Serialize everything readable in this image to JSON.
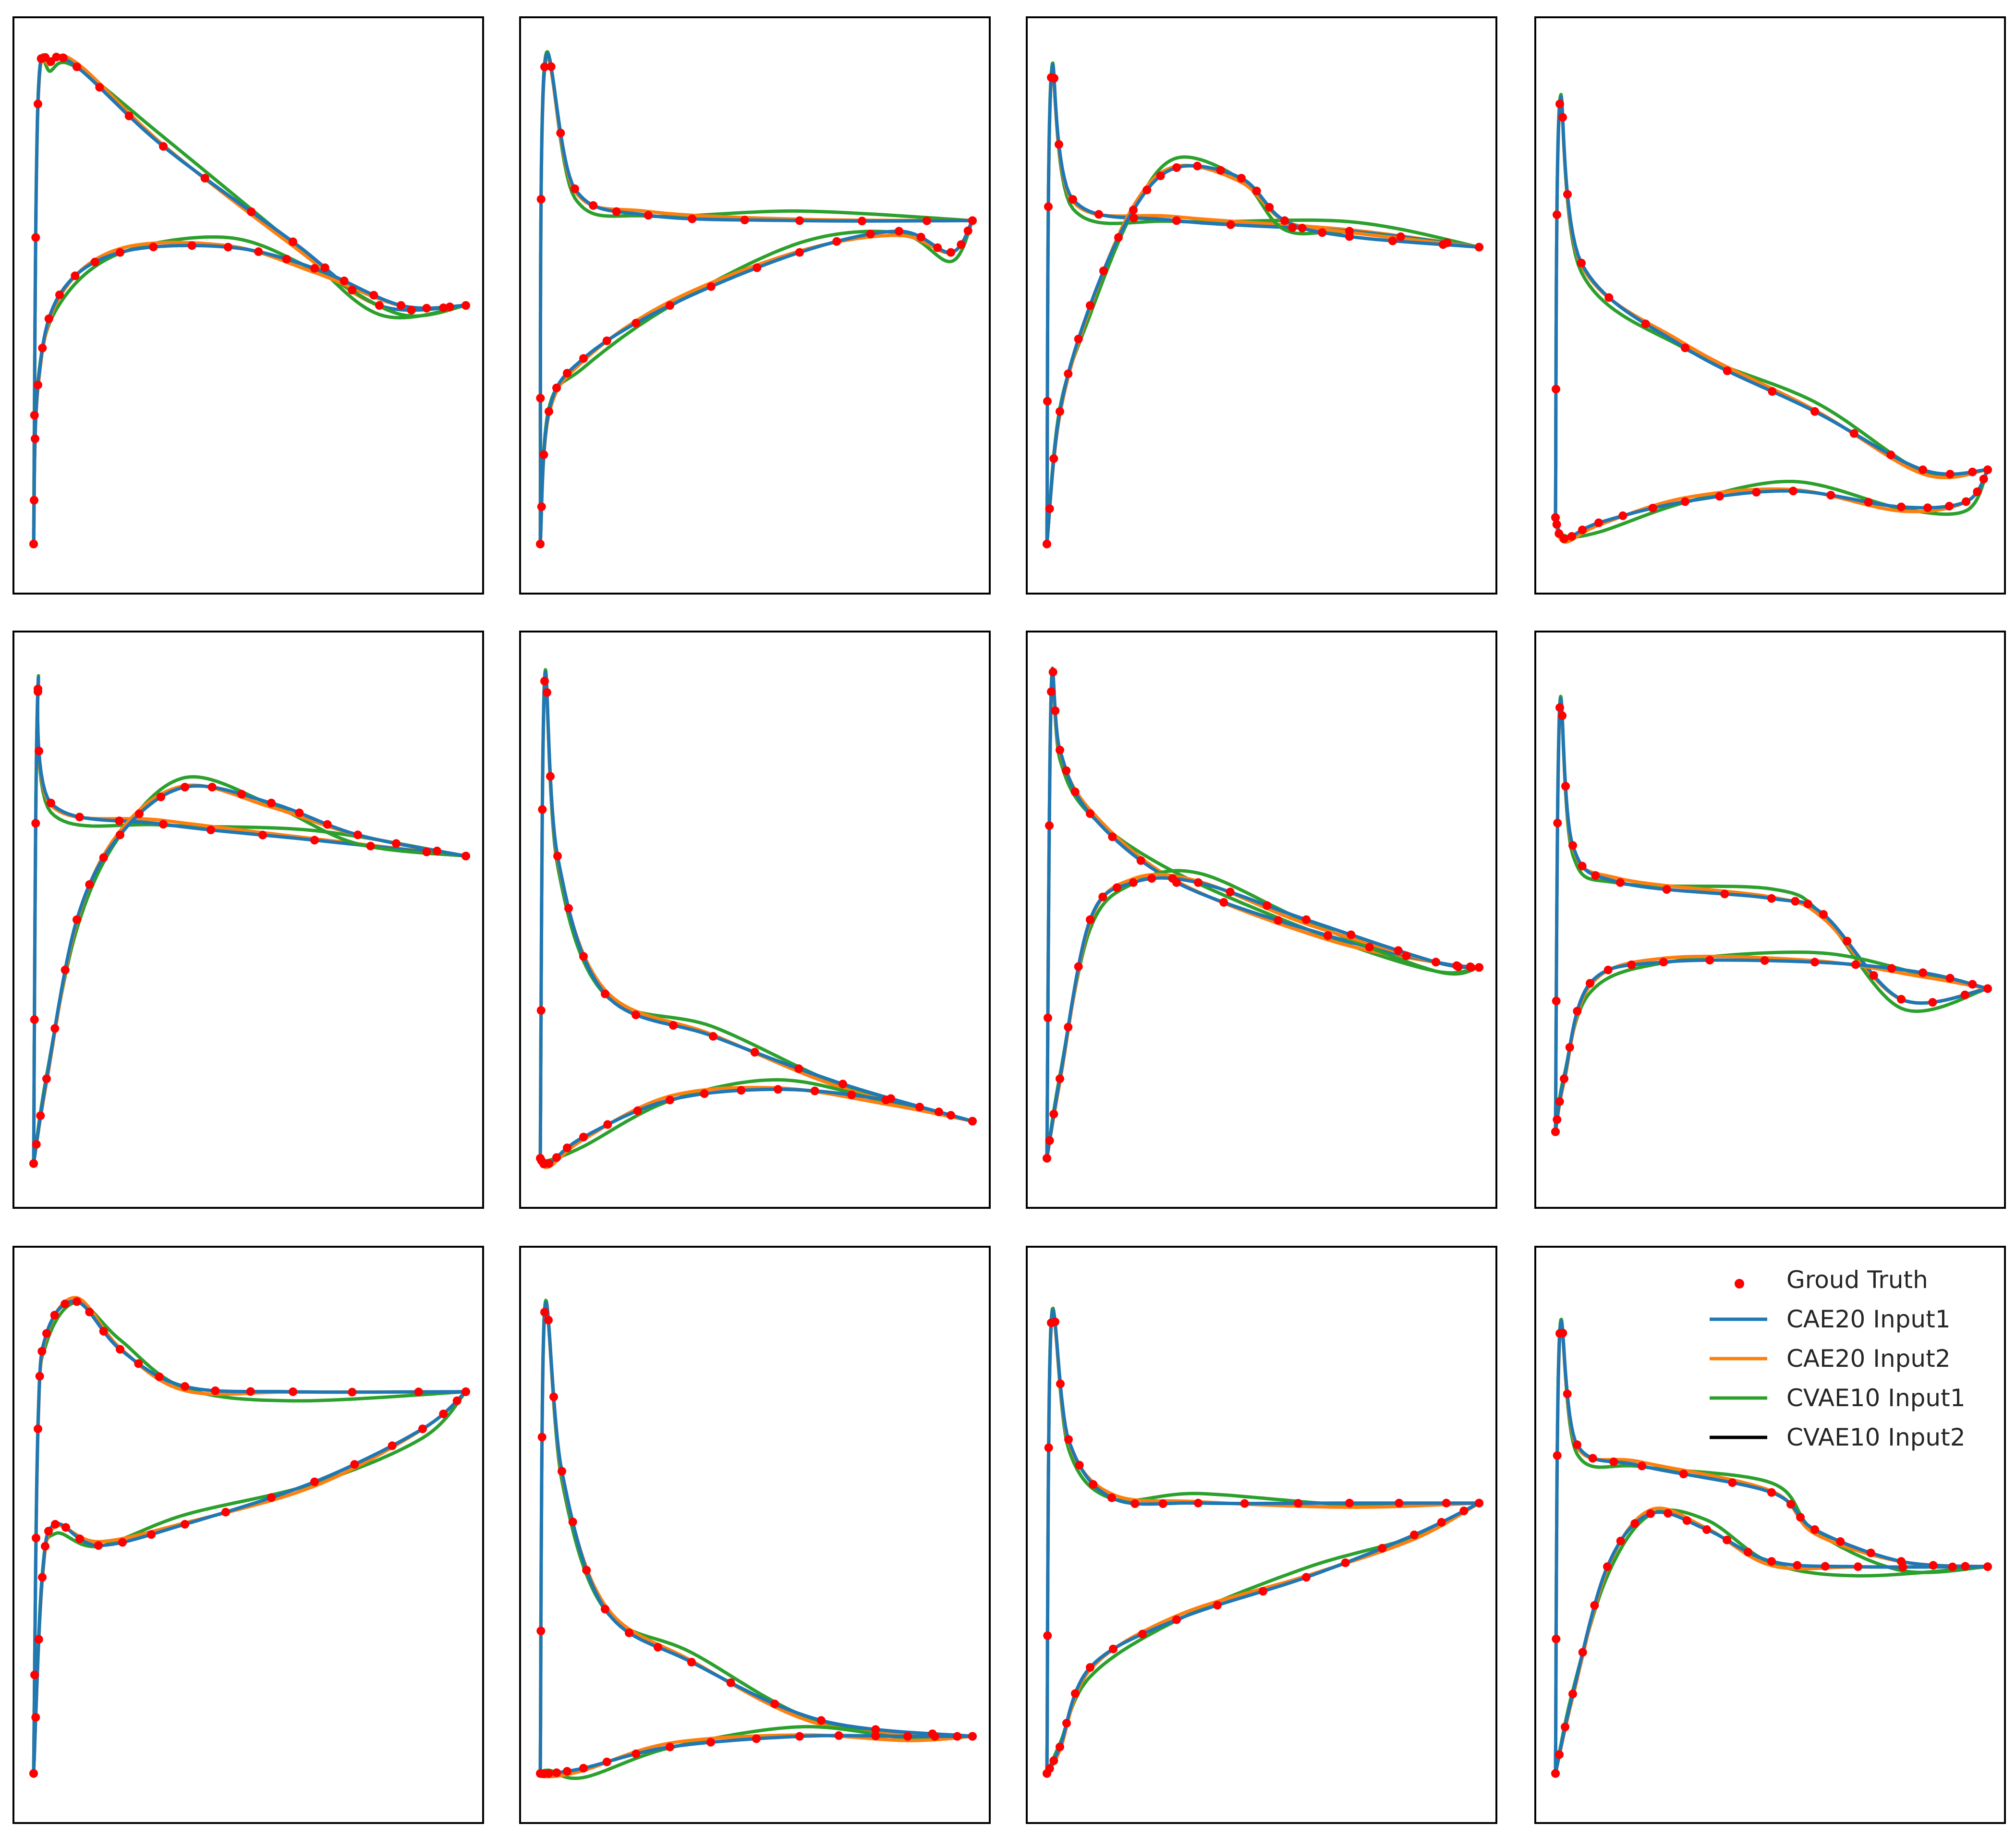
{
  "colors": {
    "ground_truth": "#ff0000",
    "cae20_input1": "#1f77b4",
    "cae20_input2": "#ff7f0e",
    "cvae10_input1": "#2ca02c",
    "cvae10_input2": "#000000",
    "frame": "#000000",
    "background": "#ffffff"
  },
  "chart_data": {
    "type": "line",
    "layout": "3x4 grid of small multiples, no axis ticks or labels",
    "axes_visible": false,
    "grid": false,
    "legend": {
      "placement": "upper-right of bottom-right panel",
      "entries": [
        {
          "key": "ground_truth",
          "label": "Groud Truth",
          "marker": "dot"
        },
        {
          "key": "cae20_input1",
          "label": "CAE20 Input1",
          "marker": "line"
        },
        {
          "key": "cae20_input2",
          "label": "CAE20 Input2",
          "marker": "line"
        },
        {
          "key": "cvae10_input1",
          "label": "CVAE10 Input1",
          "marker": "line"
        },
        {
          "key": "cvae10_input2",
          "label": "CVAE10 Input2",
          "marker": "line"
        }
      ]
    },
    "panels": [
      {
        "upper": [
          [
            0.0,
            0.05
          ],
          [
            0.01,
            0.88
          ],
          [
            0.04,
            0.96
          ],
          [
            0.1,
            0.95
          ],
          [
            0.3,
            0.8
          ],
          [
            0.6,
            0.62
          ],
          [
            0.8,
            0.5
          ],
          [
            1.0,
            0.5
          ]
        ],
        "lower": [
          [
            0.0,
            0.05
          ],
          [
            0.01,
            0.35
          ],
          [
            0.06,
            0.52
          ],
          [
            0.2,
            0.6
          ],
          [
            0.45,
            0.61
          ],
          [
            0.65,
            0.57
          ],
          [
            0.85,
            0.5
          ],
          [
            1.0,
            0.5
          ]
        ]
      },
      {
        "upper": [
          [
            0.0,
            0.05
          ],
          [
            0.01,
            0.95
          ],
          [
            0.08,
            0.72
          ],
          [
            0.25,
            0.67
          ],
          [
            0.6,
            0.66
          ],
          [
            1.0,
            0.66
          ]
        ],
        "lower": [
          [
            0.0,
            0.05
          ],
          [
            0.02,
            0.3
          ],
          [
            0.1,
            0.4
          ],
          [
            0.3,
            0.5
          ],
          [
            0.6,
            0.6
          ],
          [
            0.83,
            0.64
          ],
          [
            0.95,
            0.6
          ],
          [
            1.0,
            0.66
          ]
        ]
      },
      {
        "upper": [
          [
            0.0,
            0.05
          ],
          [
            0.01,
            0.93
          ],
          [
            0.06,
            0.7
          ],
          [
            0.3,
            0.66
          ],
          [
            0.7,
            0.64
          ],
          [
            1.0,
            0.61
          ]
        ],
        "lower": [
          [
            0.0,
            0.05
          ],
          [
            0.03,
            0.3
          ],
          [
            0.1,
            0.5
          ],
          [
            0.2,
            0.68
          ],
          [
            0.3,
            0.76
          ],
          [
            0.45,
            0.74
          ],
          [
            0.55,
            0.66
          ],
          [
            0.7,
            0.63
          ],
          [
            1.0,
            0.61
          ]
        ]
      },
      {
        "upper": [
          [
            0.0,
            0.1
          ],
          [
            0.01,
            0.88
          ],
          [
            0.06,
            0.58
          ],
          [
            0.3,
            0.42
          ],
          [
            0.6,
            0.3
          ],
          [
            0.85,
            0.19
          ],
          [
            1.0,
            0.19
          ]
        ],
        "lower": [
          [
            0.0,
            0.1
          ],
          [
            0.02,
            0.06
          ],
          [
            0.1,
            0.09
          ],
          [
            0.3,
            0.13
          ],
          [
            0.55,
            0.15
          ],
          [
            0.8,
            0.12
          ],
          [
            0.95,
            0.13
          ],
          [
            1.0,
            0.19
          ]
        ]
      },
      {
        "upper": [
          [
            0.0,
            0.04
          ],
          [
            0.01,
            0.93
          ],
          [
            0.04,
            0.72
          ],
          [
            0.3,
            0.68
          ],
          [
            0.65,
            0.65
          ],
          [
            1.0,
            0.62
          ]
        ],
        "lower": [
          [
            0.0,
            0.04
          ],
          [
            0.03,
            0.2
          ],
          [
            0.1,
            0.5
          ],
          [
            0.2,
            0.66
          ],
          [
            0.35,
            0.75
          ],
          [
            0.55,
            0.72
          ],
          [
            0.75,
            0.66
          ],
          [
            1.0,
            0.62
          ]
        ]
      },
      {
        "upper": [
          [
            0.0,
            0.05
          ],
          [
            0.01,
            0.95
          ],
          [
            0.04,
            0.62
          ],
          [
            0.15,
            0.36
          ],
          [
            0.4,
            0.28
          ],
          [
            0.7,
            0.19
          ],
          [
            1.0,
            0.12
          ]
        ],
        "lower": [
          [
            0.0,
            0.05
          ],
          [
            0.02,
            0.04
          ],
          [
            0.1,
            0.09
          ],
          [
            0.3,
            0.16
          ],
          [
            0.55,
            0.18
          ],
          [
            0.8,
            0.16
          ],
          [
            1.0,
            0.12
          ]
        ]
      },
      {
        "upper": [
          [
            0.0,
            0.05
          ],
          [
            0.01,
            0.93
          ],
          [
            0.03,
            0.82
          ],
          [
            0.1,
            0.7
          ],
          [
            0.3,
            0.57
          ],
          [
            0.65,
            0.47
          ],
          [
            0.9,
            0.42
          ],
          [
            1.0,
            0.41
          ]
        ],
        "lower": [
          [
            0.0,
            0.05
          ],
          [
            0.03,
            0.2
          ],
          [
            0.1,
            0.5
          ],
          [
            0.2,
            0.57
          ],
          [
            0.35,
            0.57
          ],
          [
            0.6,
            0.5
          ],
          [
            0.9,
            0.42
          ],
          [
            1.0,
            0.41
          ]
        ]
      },
      {
        "upper": [
          [
            0.0,
            0.1
          ],
          [
            0.01,
            0.9
          ],
          [
            0.04,
            0.64
          ],
          [
            0.15,
            0.57
          ],
          [
            0.5,
            0.54
          ],
          [
            0.62,
            0.51
          ],
          [
            0.8,
            0.35
          ],
          [
            1.0,
            0.37
          ]
        ],
        "lower": [
          [
            0.0,
            0.1
          ],
          [
            0.02,
            0.2
          ],
          [
            0.08,
            0.38
          ],
          [
            0.25,
            0.42
          ],
          [
            0.6,
            0.42
          ],
          [
            0.85,
            0.4
          ],
          [
            1.0,
            0.37
          ]
        ]
      },
      {
        "upper": [
          [
            0.0,
            0.05
          ],
          [
            0.01,
            0.7
          ],
          [
            0.03,
            0.88
          ],
          [
            0.1,
            0.94
          ],
          [
            0.2,
            0.85
          ],
          [
            0.35,
            0.78
          ],
          [
            0.6,
            0.77
          ],
          [
            1.0,
            0.77
          ]
        ],
        "lower": [
          [
            0.0,
            0.05
          ],
          [
            0.02,
            0.42
          ],
          [
            0.05,
            0.52
          ],
          [
            0.15,
            0.48
          ],
          [
            0.35,
            0.52
          ],
          [
            0.65,
            0.6
          ],
          [
            0.9,
            0.7
          ],
          [
            1.0,
            0.77
          ]
        ]
      },
      {
        "upper": [
          [
            0.0,
            0.05
          ],
          [
            0.01,
            0.92
          ],
          [
            0.05,
            0.62
          ],
          [
            0.15,
            0.36
          ],
          [
            0.35,
            0.26
          ],
          [
            0.65,
            0.15
          ],
          [
            1.0,
            0.12
          ]
        ],
        "lower": [
          [
            0.0,
            0.05
          ],
          [
            0.02,
            0.05
          ],
          [
            0.1,
            0.06
          ],
          [
            0.3,
            0.1
          ],
          [
            0.6,
            0.12
          ],
          [
            0.85,
            0.12
          ],
          [
            1.0,
            0.12
          ]
        ]
      },
      {
        "upper": [
          [
            0.0,
            0.05
          ],
          [
            0.01,
            0.9
          ],
          [
            0.05,
            0.68
          ],
          [
            0.15,
            0.57
          ],
          [
            0.35,
            0.56
          ],
          [
            0.7,
            0.56
          ],
          [
            1.0,
            0.56
          ]
        ],
        "lower": [
          [
            0.0,
            0.05
          ],
          [
            0.03,
            0.1
          ],
          [
            0.1,
            0.25
          ],
          [
            0.3,
            0.34
          ],
          [
            0.6,
            0.42
          ],
          [
            0.85,
            0.5
          ],
          [
            1.0,
            0.56
          ]
        ]
      },
      {
        "upper": [
          [
            0.0,
            0.05
          ],
          [
            0.01,
            0.88
          ],
          [
            0.05,
            0.67
          ],
          [
            0.2,
            0.63
          ],
          [
            0.5,
            0.58
          ],
          [
            0.6,
            0.51
          ],
          [
            0.8,
            0.45
          ],
          [
            1.0,
            0.44
          ]
        ],
        "lower": [
          [
            0.0,
            0.05
          ],
          [
            0.04,
            0.2
          ],
          [
            0.12,
            0.44
          ],
          [
            0.22,
            0.54
          ],
          [
            0.35,
            0.51
          ],
          [
            0.5,
            0.45
          ],
          [
            0.7,
            0.44
          ],
          [
            1.0,
            0.44
          ]
        ]
      }
    ]
  }
}
